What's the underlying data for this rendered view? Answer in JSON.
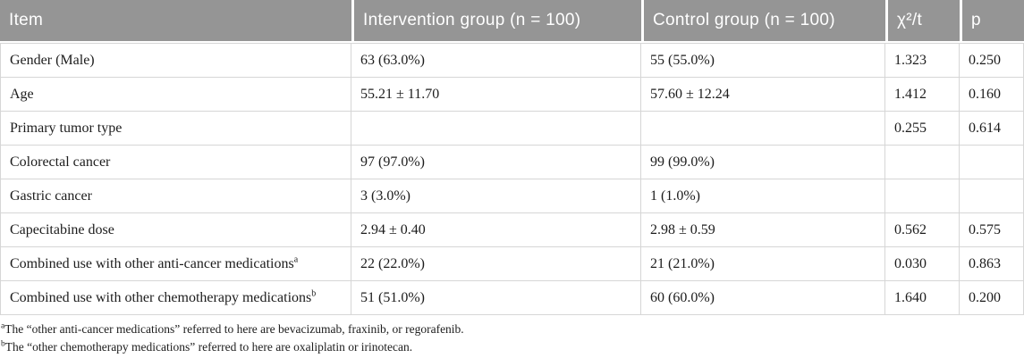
{
  "colors": {
    "header_bg": "#959595",
    "header_text": "#ffffff",
    "body_text": "#1c1c1c",
    "grid_border": "#d6d6d6",
    "row_bg": "#ffffff"
  },
  "table": {
    "columns": [
      {
        "label": "Item"
      },
      {
        "label": "Intervention group (n = 100)"
      },
      {
        "label": "Control group (n = 100)"
      },
      {
        "label": "χ²/t"
      },
      {
        "label": "p"
      }
    ],
    "rows": [
      {
        "item": "Gender (Male)",
        "item_sup": "",
        "intervention": "63 (63.0%)",
        "control": "55 (55.0%)",
        "chi_t": "1.323",
        "p": "0.250"
      },
      {
        "item": "Age",
        "item_sup": "",
        "intervention": "55.21 ± 11.70",
        "control": "57.60 ± 12.24",
        "chi_t": "1.412",
        "p": "0.160"
      },
      {
        "item": "Primary tumor type",
        "item_sup": "",
        "intervention": "",
        "control": "",
        "chi_t": "0.255",
        "p": "0.614"
      },
      {
        "item": "Colorectal cancer",
        "item_sup": "",
        "intervention": "97 (97.0%)",
        "control": "99 (99.0%)",
        "chi_t": "",
        "p": ""
      },
      {
        "item": "Gastric cancer",
        "item_sup": "",
        "intervention": "3 (3.0%)",
        "control": "1 (1.0%)",
        "chi_t": "",
        "p": ""
      },
      {
        "item": "Capecitabine dose",
        "item_sup": "",
        "intervention": "2.94 ± 0.40",
        "control": "2.98 ± 0.59",
        "chi_t": "0.562",
        "p": "0.575"
      },
      {
        "item": "Combined use with other anti-cancer medications",
        "item_sup": "a",
        "intervention": "22 (22.0%)",
        "control": "21 (21.0%)",
        "chi_t": "0.030",
        "p": "0.863"
      },
      {
        "item": "Combined use with other chemotherapy medications",
        "item_sup": "b",
        "intervention": "51 (51.0%)",
        "control": "60 (60.0%)",
        "chi_t": "1.640",
        "p": "0.200"
      }
    ]
  },
  "footnotes": [
    {
      "marker": "a",
      "text": "The “other anti-cancer medications” referred to here are bevacizumab, fraxinib, or regorafenib."
    },
    {
      "marker": "b",
      "text": "The “other chemotherapy medications” referred to here are oxaliplatin or irinotecan."
    }
  ]
}
